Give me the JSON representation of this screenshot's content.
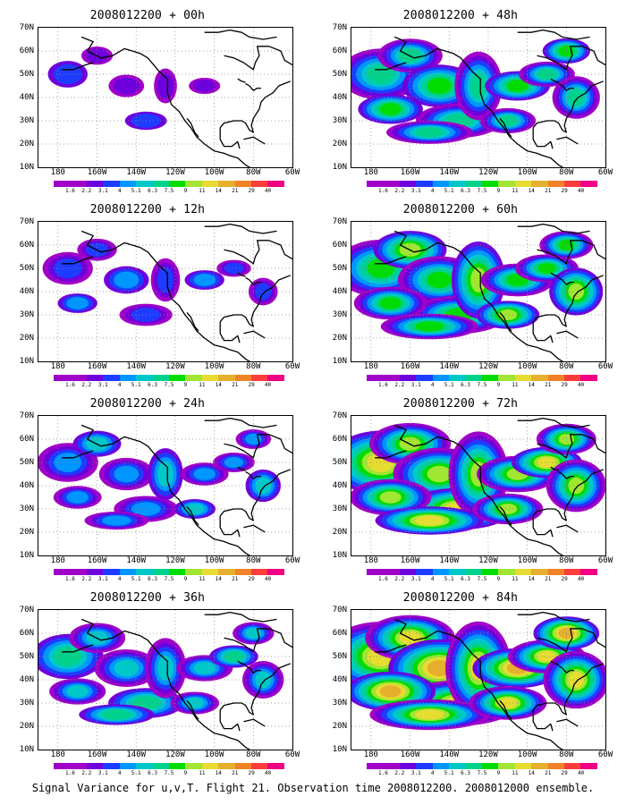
{
  "caption": "Signal Variance for u,v,T. Flight 21. Observation time 2008012200. 2008012000 ensemble.",
  "lat_labels": [
    "70N",
    "60N",
    "50N",
    "40N",
    "30N",
    "20N",
    "10N"
  ],
  "lon_labels": [
    "180",
    "160W",
    "140W",
    "120W",
    "100W",
    "80W",
    "60W"
  ],
  "colorbar": {
    "labels": [
      "1.6",
      "2.2",
      "3.1",
      "4",
      "5.1",
      "6.3",
      "7.5",
      "9",
      "11",
      "14",
      "21",
      "29",
      "40"
    ],
    "colors": [
      "#a000c8",
      "#6e00dc",
      "#1e3cff",
      "#0096ff",
      "#00c8c8",
      "#00d28c",
      "#00dc00",
      "#a0e632",
      "#e6dc32",
      "#e6af2d",
      "#f08228",
      "#fa3c3c",
      "#f00082"
    ]
  },
  "panels": [
    {
      "title": "2008012200 + 00h",
      "level": 0
    },
    {
      "title": "2008012200 + 48h",
      "level": 4
    },
    {
      "title": "2008012200 + 12h",
      "level": 1
    },
    {
      "title": "2008012200 + 60h",
      "level": 5
    },
    {
      "title": "2008012200 + 24h",
      "level": 2
    },
    {
      "title": "2008012200 + 72h",
      "level": 6
    },
    {
      "title": "2008012200 + 36h",
      "level": 3
    },
    {
      "title": "2008012200 + 84h",
      "level": 7
    }
  ]
}
